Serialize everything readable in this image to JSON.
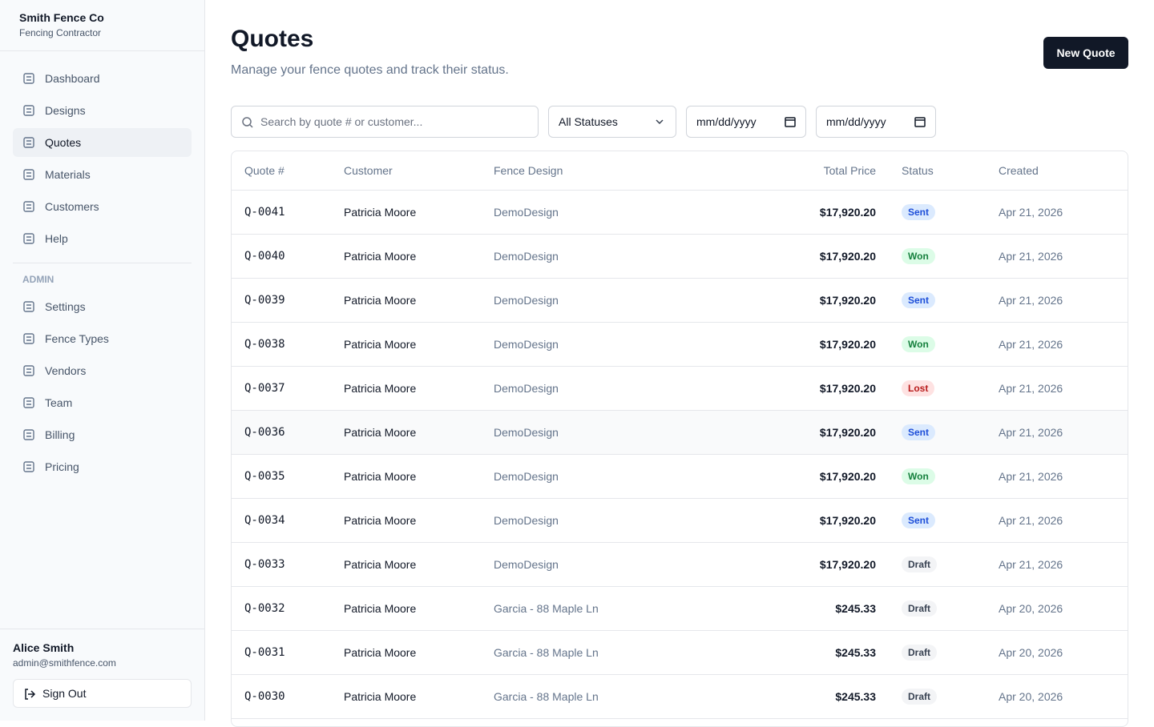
{
  "sidebar": {
    "company": "Smith Fence Co",
    "tagline": "Fencing Contractor",
    "nav": [
      "Dashboard",
      "Designs",
      "Quotes",
      "Materials",
      "Customers",
      "Help"
    ],
    "admin_heading": "ADMIN",
    "admin_nav": [
      "Settings",
      "Fence Types",
      "Vendors",
      "Team",
      "Billing",
      "Pricing"
    ],
    "user": {
      "name": "Alice Smith",
      "email": "admin@smithfence.com"
    },
    "sign_out": "Sign Out"
  },
  "header": {
    "title": "Quotes",
    "subtitle": "Manage your fence quotes and track their status.",
    "new_button": "New Quote"
  },
  "filters": {
    "search_placeholder": "Search by quote # or customer...",
    "status": "All Statuses",
    "date_from": "mm/dd/yyyy",
    "date_to": "mm/dd/yyyy"
  },
  "table": {
    "columns": [
      "Quote #",
      "Customer",
      "Fence Design",
      "Total Price",
      "Status",
      "Created"
    ],
    "rows": [
      [
        "Q-0041",
        "Patricia Moore",
        "DemoDesign",
        "$17,920.20",
        "Sent",
        "Apr 21, 2026"
      ],
      [
        "Q-0040",
        "Patricia Moore",
        "DemoDesign",
        "$17,920.20",
        "Won",
        "Apr 21, 2026"
      ],
      [
        "Q-0039",
        "Patricia Moore",
        "DemoDesign",
        "$17,920.20",
        "Sent",
        "Apr 21, 2026"
      ],
      [
        "Q-0038",
        "Patricia Moore",
        "DemoDesign",
        "$17,920.20",
        "Won",
        "Apr 21, 2026"
      ],
      [
        "Q-0037",
        "Patricia Moore",
        "DemoDesign",
        "$17,920.20",
        "Lost",
        "Apr 21, 2026"
      ],
      [
        "Q-0036",
        "Patricia Moore",
        "DemoDesign",
        "$17,920.20",
        "Sent",
        "Apr 21, 2026"
      ],
      [
        "Q-0035",
        "Patricia Moore",
        "DemoDesign",
        "$17,920.20",
        "Won",
        "Apr 21, 2026"
      ],
      [
        "Q-0034",
        "Patricia Moore",
        "DemoDesign",
        "$17,920.20",
        "Sent",
        "Apr 21, 2026"
      ],
      [
        "Q-0033",
        "Patricia Moore",
        "DemoDesign",
        "$17,920.20",
        "Draft",
        "Apr 21, 2026"
      ],
      [
        "Q-0032",
        "Patricia Moore",
        "Garcia - 88 Maple Ln",
        "$245.33",
        "Draft",
        "Apr 20, 2026"
      ],
      [
        "Q-0031",
        "Patricia Moore",
        "Garcia - 88 Maple Ln",
        "$245.33",
        "Draft",
        "Apr 20, 2026"
      ],
      [
        "Q-0030",
        "Patricia Moore",
        "Garcia - 88 Maple Ln",
        "$245.33",
        "Draft",
        "Apr 20, 2026"
      ]
    ],
    "status_colors": {
      "Sent": [
        "#dbeafe",
        "#1d4ed8"
      ],
      "Won": [
        "#dcfce7",
        "#15803d"
      ],
      "Lost": [
        "#fee2e2",
        "#b91c1c"
      ],
      "Draft": [
        "#f3f4f6",
        "#374151"
      ]
    }
  }
}
